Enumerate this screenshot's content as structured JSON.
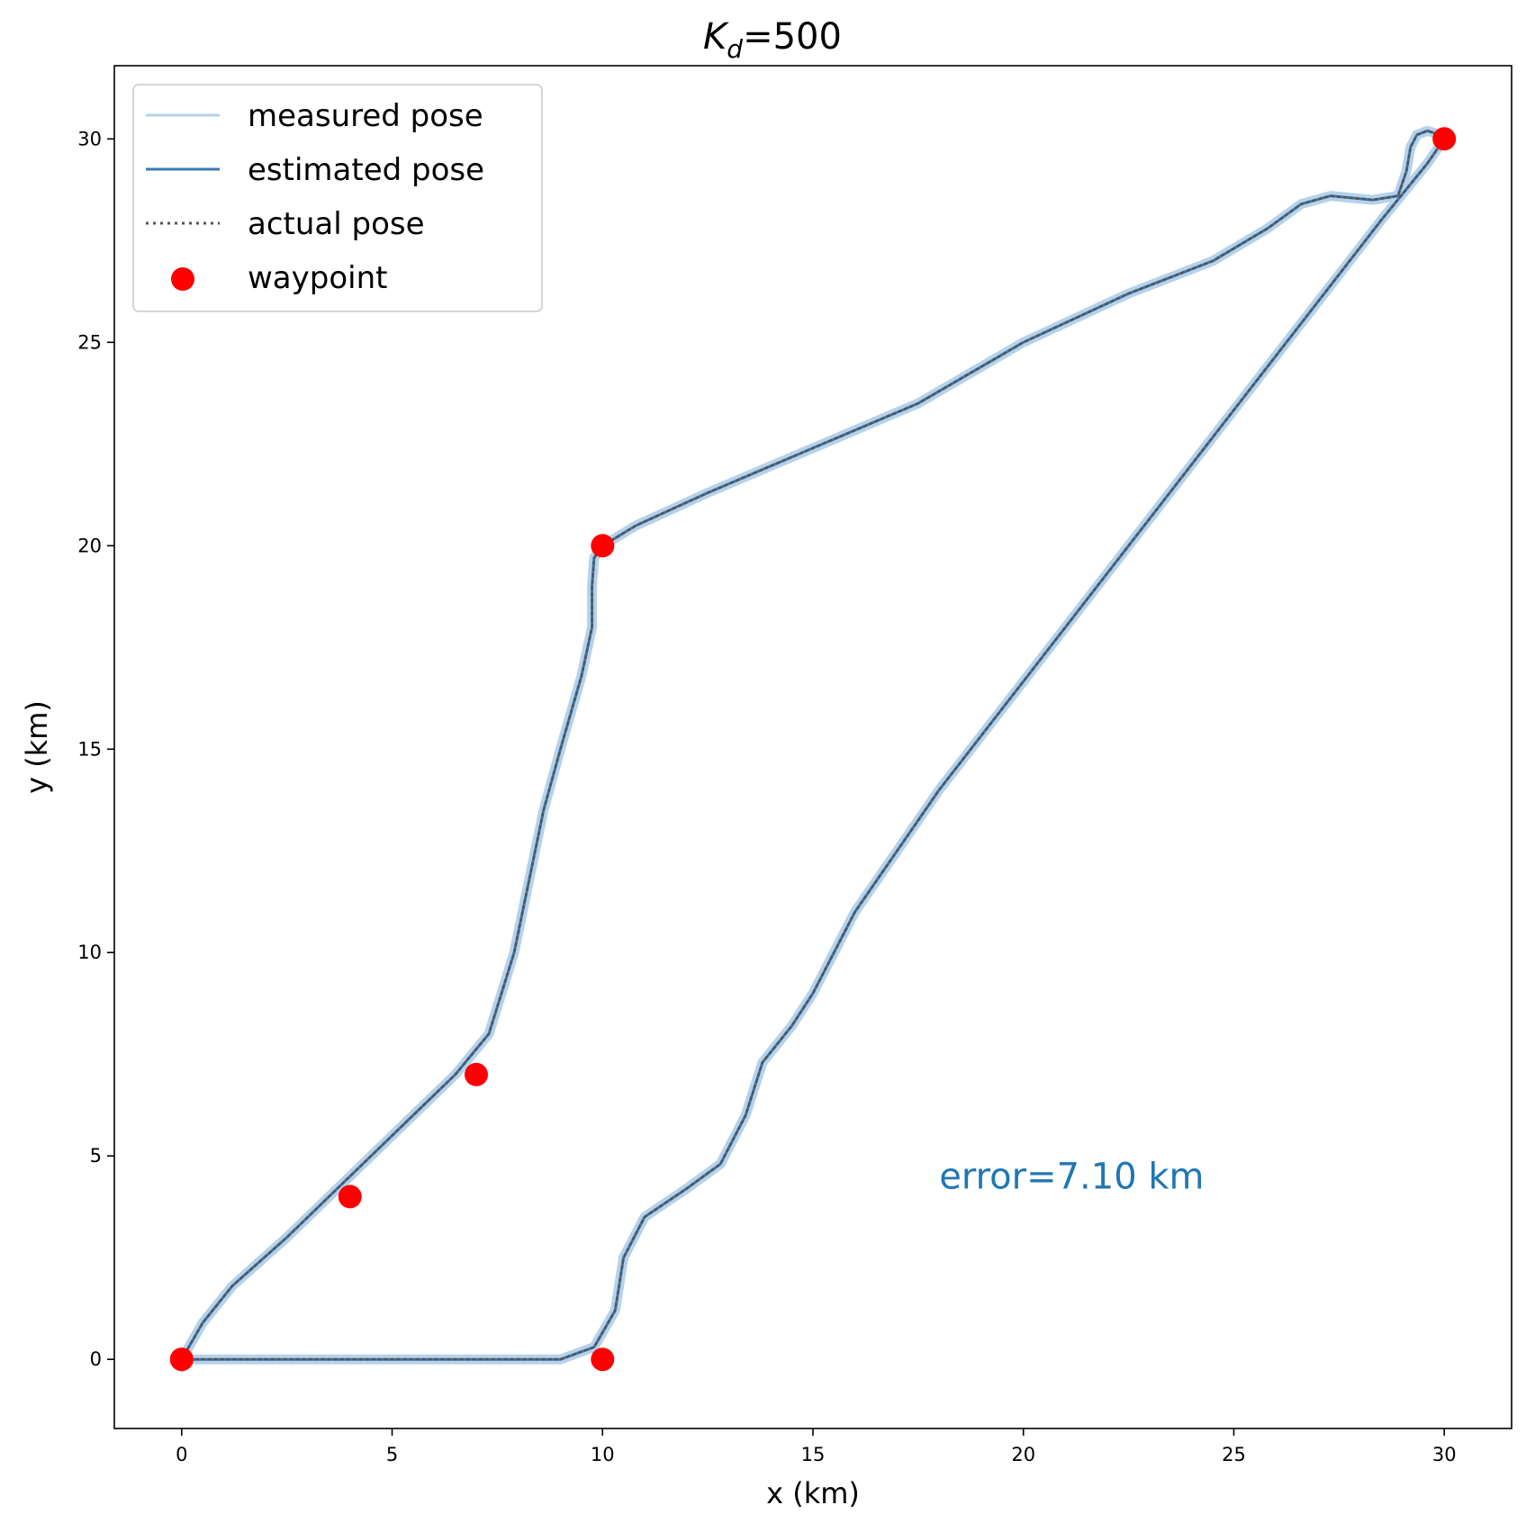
{
  "chart_data": {
    "type": "line",
    "title": {
      "main": "K",
      "sub": "d",
      "suffix": "=500"
    },
    "xlabel": "x (km)",
    "ylabel": "y (km)",
    "xlim": [
      -1.6,
      31.6
    ],
    "ylim": [
      -1.7,
      31.8
    ],
    "xticks": [
      0,
      5,
      10,
      15,
      20,
      25,
      30
    ],
    "yticks": [
      0,
      5,
      10,
      15,
      20,
      25,
      30
    ],
    "grid": false,
    "legend_position": "upper-left",
    "series": [
      {
        "name": "measured pose",
        "style": "solid",
        "color": "#b6d2ea",
        "points": [
          [
            0,
            0
          ],
          [
            0.5,
            0.9
          ],
          [
            1.2,
            1.8
          ],
          [
            2.5,
            3.0
          ],
          [
            3.5,
            4.0
          ],
          [
            4.5,
            5.0
          ],
          [
            5.5,
            6.0
          ],
          [
            6.5,
            7.0
          ],
          [
            7.3,
            8.0
          ],
          [
            7.6,
            9.0
          ],
          [
            7.9,
            10.0
          ],
          [
            8.2,
            11.5
          ],
          [
            8.6,
            13.5
          ],
          [
            9.0,
            15.0
          ],
          [
            9.5,
            16.8
          ],
          [
            9.75,
            18.0
          ],
          [
            9.75,
            19.0
          ],
          [
            9.8,
            19.7
          ],
          [
            10.0,
            20.0
          ],
          [
            10.8,
            20.5
          ],
          [
            12.5,
            21.3
          ],
          [
            15.0,
            22.4
          ],
          [
            17.5,
            23.5
          ],
          [
            20.0,
            25.0
          ],
          [
            22.5,
            26.2
          ],
          [
            24.5,
            27.0
          ],
          [
            25.8,
            27.8
          ],
          [
            26.6,
            28.4
          ],
          [
            27.3,
            28.6
          ],
          [
            28.3,
            28.5
          ],
          [
            28.9,
            28.6
          ],
          [
            29.1,
            29.2
          ],
          [
            29.2,
            29.8
          ],
          [
            29.35,
            30.1
          ],
          [
            29.6,
            30.2
          ],
          [
            29.9,
            30.1
          ],
          [
            30.0,
            30.0
          ],
          [
            29.6,
            29.4
          ],
          [
            28.5,
            28.0
          ],
          [
            27.0,
            26.0
          ],
          [
            25.5,
            24.0
          ],
          [
            24.0,
            22.0
          ],
          [
            22.5,
            20.0
          ],
          [
            21.0,
            18.0
          ],
          [
            19.5,
            16.0
          ],
          [
            18.0,
            14.0
          ],
          [
            17.0,
            12.5
          ],
          [
            16.0,
            11.0
          ],
          [
            15.5,
            10.0
          ],
          [
            15.0,
            9.0
          ],
          [
            14.5,
            8.2
          ],
          [
            13.8,
            7.3
          ],
          [
            13.4,
            6.0
          ],
          [
            12.8,
            4.8
          ],
          [
            12.0,
            4.2
          ],
          [
            11.0,
            3.5
          ],
          [
            10.5,
            2.5
          ],
          [
            10.3,
            1.2
          ],
          [
            9.8,
            0.3
          ],
          [
            9.0,
            0.0
          ],
          [
            7.0,
            0.0
          ],
          [
            5.0,
            0.0
          ],
          [
            3.0,
            0.0
          ],
          [
            1.0,
            0.0
          ],
          [
            0.0,
            0.0
          ]
        ]
      },
      {
        "name": "estimated pose",
        "style": "solid",
        "color": "#3a7ab3",
        "points": [
          [
            0,
            0
          ],
          [
            0.5,
            0.9
          ],
          [
            1.2,
            1.8
          ],
          [
            2.5,
            3.0
          ],
          [
            3.5,
            4.0
          ],
          [
            4.5,
            5.0
          ],
          [
            5.5,
            6.0
          ],
          [
            6.5,
            7.0
          ],
          [
            7.3,
            8.0
          ],
          [
            7.6,
            9.0
          ],
          [
            7.9,
            10.0
          ],
          [
            8.2,
            11.5
          ],
          [
            8.6,
            13.5
          ],
          [
            9.0,
            15.0
          ],
          [
            9.5,
            16.8
          ],
          [
            9.75,
            18.0
          ],
          [
            9.75,
            19.0
          ],
          [
            9.8,
            19.7
          ],
          [
            10.0,
            20.0
          ],
          [
            10.8,
            20.5
          ],
          [
            12.5,
            21.3
          ],
          [
            15.0,
            22.4
          ],
          [
            17.5,
            23.5
          ],
          [
            20.0,
            25.0
          ],
          [
            22.5,
            26.2
          ],
          [
            24.5,
            27.0
          ],
          [
            25.8,
            27.8
          ],
          [
            26.6,
            28.4
          ],
          [
            27.3,
            28.6
          ],
          [
            28.3,
            28.5
          ],
          [
            28.9,
            28.6
          ],
          [
            29.1,
            29.2
          ],
          [
            29.2,
            29.8
          ],
          [
            29.35,
            30.1
          ],
          [
            29.6,
            30.2
          ],
          [
            29.9,
            30.1
          ],
          [
            30.0,
            30.0
          ],
          [
            29.6,
            29.4
          ],
          [
            28.5,
            28.0
          ],
          [
            27.0,
            26.0
          ],
          [
            25.5,
            24.0
          ],
          [
            24.0,
            22.0
          ],
          [
            22.5,
            20.0
          ],
          [
            21.0,
            18.0
          ],
          [
            19.5,
            16.0
          ],
          [
            18.0,
            14.0
          ],
          [
            17.0,
            12.5
          ],
          [
            16.0,
            11.0
          ],
          [
            15.5,
            10.0
          ],
          [
            15.0,
            9.0
          ],
          [
            14.5,
            8.2
          ],
          [
            13.8,
            7.3
          ],
          [
            13.4,
            6.0
          ],
          [
            12.8,
            4.8
          ],
          [
            12.0,
            4.2
          ],
          [
            11.0,
            3.5
          ],
          [
            10.5,
            2.5
          ],
          [
            10.3,
            1.2
          ],
          [
            9.8,
            0.3
          ],
          [
            9.0,
            0.0
          ],
          [
            7.0,
            0.0
          ],
          [
            5.0,
            0.0
          ],
          [
            3.0,
            0.0
          ],
          [
            1.0,
            0.0
          ],
          [
            0.0,
            0.0
          ]
        ]
      },
      {
        "name": "actual pose",
        "style": "dotted",
        "color": "#555555",
        "points": [
          [
            0,
            0
          ],
          [
            0.5,
            0.9
          ],
          [
            1.2,
            1.8
          ],
          [
            2.5,
            3.0
          ],
          [
            3.5,
            4.0
          ],
          [
            4.5,
            5.0
          ],
          [
            5.5,
            6.0
          ],
          [
            6.5,
            7.0
          ],
          [
            7.3,
            8.0
          ],
          [
            7.6,
            9.0
          ],
          [
            7.9,
            10.0
          ],
          [
            8.2,
            11.5
          ],
          [
            8.6,
            13.5
          ],
          [
            9.0,
            15.0
          ],
          [
            9.5,
            16.8
          ],
          [
            9.75,
            18.0
          ],
          [
            9.75,
            19.0
          ],
          [
            9.8,
            19.7
          ],
          [
            10.0,
            20.0
          ],
          [
            10.8,
            20.5
          ],
          [
            12.5,
            21.3
          ],
          [
            15.0,
            22.4
          ],
          [
            17.5,
            23.5
          ],
          [
            20.0,
            25.0
          ],
          [
            22.5,
            26.2
          ],
          [
            24.5,
            27.0
          ],
          [
            25.8,
            27.8
          ],
          [
            26.6,
            28.4
          ],
          [
            27.3,
            28.6
          ],
          [
            28.3,
            28.5
          ],
          [
            28.9,
            28.6
          ],
          [
            29.1,
            29.2
          ],
          [
            29.2,
            29.8
          ],
          [
            29.35,
            30.1
          ],
          [
            29.6,
            30.2
          ],
          [
            29.9,
            30.1
          ],
          [
            30.0,
            30.0
          ],
          [
            29.6,
            29.4
          ],
          [
            28.5,
            28.0
          ],
          [
            27.0,
            26.0
          ],
          [
            25.5,
            24.0
          ],
          [
            24.0,
            22.0
          ],
          [
            22.5,
            20.0
          ],
          [
            21.0,
            18.0
          ],
          [
            19.5,
            16.0
          ],
          [
            18.0,
            14.0
          ],
          [
            17.0,
            12.5
          ],
          [
            16.0,
            11.0
          ],
          [
            15.5,
            10.0
          ],
          [
            15.0,
            9.0
          ],
          [
            14.5,
            8.2
          ],
          [
            13.8,
            7.3
          ],
          [
            13.4,
            6.0
          ],
          [
            12.8,
            4.8
          ],
          [
            12.0,
            4.2
          ],
          [
            11.0,
            3.5
          ],
          [
            10.5,
            2.5
          ],
          [
            10.3,
            1.2
          ],
          [
            9.8,
            0.3
          ],
          [
            9.0,
            0.0
          ],
          [
            7.0,
            0.0
          ],
          [
            5.0,
            0.0
          ],
          [
            3.0,
            0.0
          ],
          [
            1.0,
            0.0
          ],
          [
            0.0,
            0.0
          ]
        ]
      }
    ],
    "waypoints": {
      "name": "waypoint",
      "color": "#ff0000",
      "points": [
        [
          0,
          0
        ],
        [
          4,
          4
        ],
        [
          7,
          7
        ],
        [
          10,
          20
        ],
        [
          30,
          30
        ],
        [
          10,
          0
        ],
        [
          0,
          0
        ]
      ]
    },
    "annotation": {
      "text": "error=7.10 km",
      "x": 18.0,
      "y": 4.2,
      "color": "#1f77b4"
    }
  }
}
